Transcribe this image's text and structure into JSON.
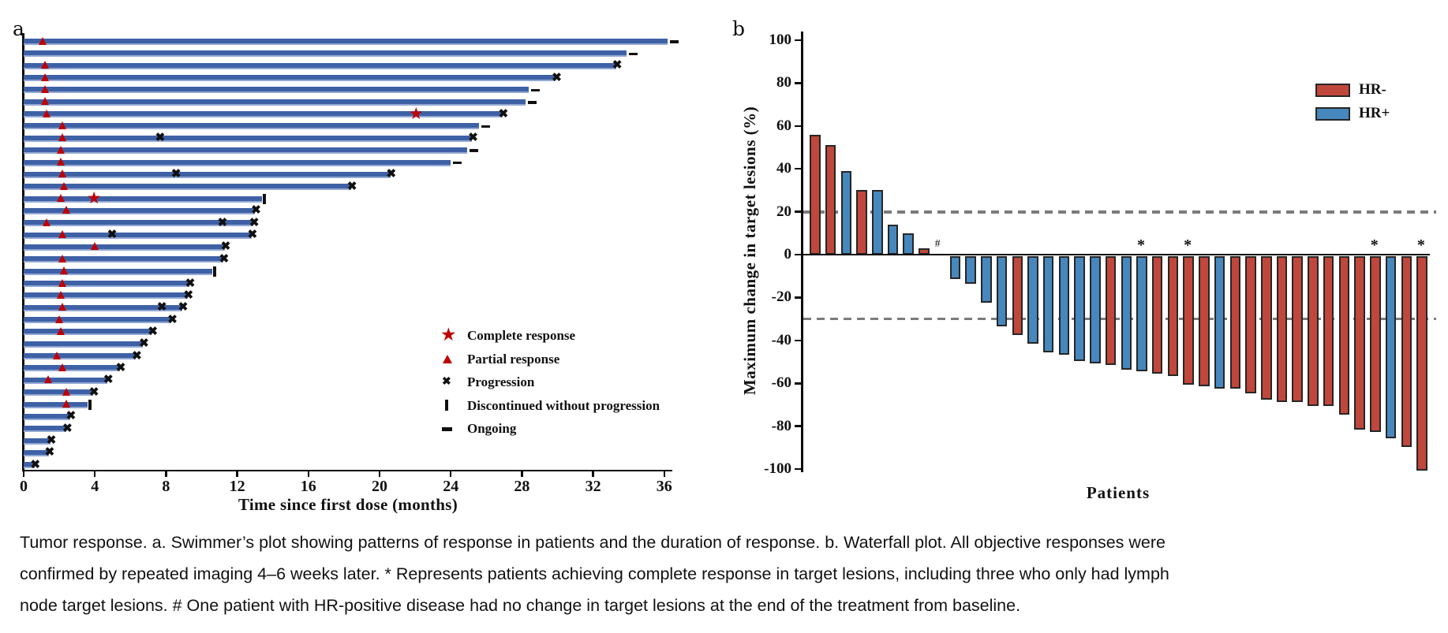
{
  "colors": {
    "swimmer_bar": "#3E61A6",
    "swimmer_bar_edge": "#93A9D4",
    "response_marker_red": "#C00000",
    "black_marker": "#101010",
    "waterfall_hr_neg": "#C0473B",
    "waterfall_hr_pos": "#4687BE",
    "bar_outline": "#262626",
    "dashed_reference": "#7B7B7B"
  },
  "chart_data": [
    {
      "type": "bar",
      "subtype": "swimmer",
      "panel_label": "a",
      "xlabel": "Time since first dose (months)",
      "x_ticks": [
        0,
        4,
        8,
        12,
        16,
        20,
        24,
        28,
        32,
        36
      ],
      "xlim": [
        0,
        36.6
      ],
      "legend": [
        {
          "symbol": "star",
          "label": "Complete response"
        },
        {
          "symbol": "triangle",
          "label": "Partial response"
        },
        {
          "symbol": "x",
          "label": "Progression"
        },
        {
          "symbol": "vbar",
          "label": "Discontinued without progression"
        },
        {
          "symbol": "dash",
          "label": "Ongoing"
        }
      ],
      "patients": [
        {
          "duration_months": 36.2,
          "end": "ongoing",
          "markers": [
            {
              "type": "partial_response",
              "at": 1.1
            }
          ]
        },
        {
          "duration_months": 33.9,
          "end": "ongoing",
          "markers": []
        },
        {
          "duration_months": 33.3,
          "end": "progression",
          "markers": [
            {
              "type": "partial_response",
              "at": 1.2
            }
          ]
        },
        {
          "duration_months": 29.9,
          "end": "progression",
          "markers": [
            {
              "type": "partial_response",
              "at": 1.2
            }
          ]
        },
        {
          "duration_months": 28.4,
          "end": "ongoing",
          "markers": [
            {
              "type": "partial_response",
              "at": 1.2
            }
          ]
        },
        {
          "duration_months": 28.2,
          "end": "ongoing",
          "markers": [
            {
              "type": "partial_response",
              "at": 1.2
            }
          ]
        },
        {
          "duration_months": 26.9,
          "end": "progression",
          "markers": [
            {
              "type": "partial_response",
              "at": 1.3
            },
            {
              "type": "complete_response",
              "at": 22.1
            }
          ]
        },
        {
          "duration_months": 25.6,
          "end": "ongoing",
          "markers": [
            {
              "type": "partial_response",
              "at": 2.2
            }
          ]
        },
        {
          "duration_months": 25.2,
          "end": "progression",
          "markers": [
            {
              "type": "partial_response",
              "at": 2.2
            },
            {
              "type": "progression",
              "at": 7.7
            }
          ]
        },
        {
          "duration_months": 24.9,
          "end": "ongoing",
          "markers": [
            {
              "type": "partial_response",
              "at": 2.1
            }
          ]
        },
        {
          "duration_months": 24.0,
          "end": "ongoing",
          "markers": [
            {
              "type": "partial_response",
              "at": 2.1
            }
          ]
        },
        {
          "duration_months": 20.6,
          "end": "progression",
          "markers": [
            {
              "type": "partial_response",
              "at": 2.2
            },
            {
              "type": "progression",
              "at": 8.6
            }
          ]
        },
        {
          "duration_months": 18.4,
          "end": "progression",
          "markers": [
            {
              "type": "partial_response",
              "at": 2.3
            }
          ]
        },
        {
          "duration_months": 13.4,
          "end": "discontinued",
          "markers": [
            {
              "type": "partial_response",
              "at": 2.1
            },
            {
              "type": "complete_response",
              "at": 4.0
            }
          ]
        },
        {
          "duration_months": 13.0,
          "end": "progression",
          "markers": [
            {
              "type": "partial_response",
              "at": 2.4
            }
          ]
        },
        {
          "duration_months": 12.9,
          "end": "progression",
          "markers": [
            {
              "type": "partial_response",
              "at": 1.3
            },
            {
              "type": "progression",
              "at": 11.2
            }
          ]
        },
        {
          "duration_months": 12.8,
          "end": "progression",
          "markers": [
            {
              "type": "partial_response",
              "at": 2.2
            },
            {
              "type": "progression",
              "at": 5.0
            }
          ]
        },
        {
          "duration_months": 11.3,
          "end": "progression",
          "markers": [
            {
              "type": "partial_response",
              "at": 4.0
            }
          ]
        },
        {
          "duration_months": 11.2,
          "end": "progression",
          "markers": [
            {
              "type": "partial_response",
              "at": 2.2
            }
          ]
        },
        {
          "duration_months": 10.6,
          "end": "discontinued",
          "markers": [
            {
              "type": "partial_response",
              "at": 2.3
            }
          ]
        },
        {
          "duration_months": 9.3,
          "end": "progression",
          "markers": [
            {
              "type": "partial_response",
              "at": 2.2
            }
          ]
        },
        {
          "duration_months": 9.2,
          "end": "progression",
          "markers": [
            {
              "type": "partial_response",
              "at": 2.1
            }
          ]
        },
        {
          "duration_months": 8.9,
          "end": "progression",
          "markers": [
            {
              "type": "partial_response",
              "at": 2.2
            },
            {
              "type": "progression",
              "at": 7.8
            }
          ]
        },
        {
          "duration_months": 8.3,
          "end": "progression",
          "markers": [
            {
              "type": "partial_response",
              "at": 2.0
            }
          ]
        },
        {
          "duration_months": 7.2,
          "end": "progression",
          "markers": [
            {
              "type": "partial_response",
              "at": 2.1
            }
          ]
        },
        {
          "duration_months": 6.7,
          "end": "progression",
          "markers": []
        },
        {
          "duration_months": 6.3,
          "end": "progression",
          "markers": [
            {
              "type": "partial_response",
              "at": 1.9
            }
          ]
        },
        {
          "duration_months": 5.4,
          "end": "progression",
          "markers": [
            {
              "type": "partial_response",
              "at": 2.2
            }
          ]
        },
        {
          "duration_months": 4.7,
          "end": "progression",
          "markers": [
            {
              "type": "partial_response",
              "at": 1.4
            }
          ]
        },
        {
          "duration_months": 3.9,
          "end": "progression",
          "markers": [
            {
              "type": "partial_response",
              "at": 2.4
            }
          ]
        },
        {
          "duration_months": 3.6,
          "end": "discontinued",
          "markers": [
            {
              "type": "partial_response",
              "at": 2.4
            }
          ]
        },
        {
          "duration_months": 2.6,
          "end": "progression",
          "markers": []
        },
        {
          "duration_months": 2.4,
          "end": "progression",
          "markers": []
        },
        {
          "duration_months": 1.5,
          "end": "progression",
          "markers": []
        },
        {
          "duration_months": 1.4,
          "end": "progression",
          "markers": []
        },
        {
          "duration_months": 0.6,
          "end": "progression",
          "markers": []
        }
      ]
    },
    {
      "type": "bar",
      "subtype": "waterfall",
      "panel_label": "b",
      "xlabel": "Patients",
      "ylabel": "Maximum change in target lesions (%)",
      "y_ticks": [
        100,
        80,
        60,
        40,
        20,
        0,
        -20,
        -40,
        -60,
        -80,
        -100
      ],
      "ylim": [
        -100,
        100
      ],
      "reference_lines": [
        20,
        -30
      ],
      "legend": [
        {
          "label": "HR-",
          "group": "HR-",
          "color": "#C0473B"
        },
        {
          "label": "HR+",
          "group": "HR+",
          "color": "#4687BE"
        }
      ],
      "bars": [
        {
          "value": 56,
          "group": "HR-"
        },
        {
          "value": 51,
          "group": "HR-"
        },
        {
          "value": 39,
          "group": "HR+"
        },
        {
          "value": 30,
          "group": "HR-"
        },
        {
          "value": 30,
          "group": "HR+"
        },
        {
          "value": 14,
          "group": "HR+"
        },
        {
          "value": 10,
          "group": "HR+"
        },
        {
          "value": 3,
          "group": "HR-"
        },
        {
          "value": 0,
          "group": "HR+",
          "annotation": "#"
        },
        {
          "value": -11,
          "group": "HR+"
        },
        {
          "value": -13,
          "group": "HR+"
        },
        {
          "value": -22,
          "group": "HR+"
        },
        {
          "value": -33,
          "group": "HR+"
        },
        {
          "value": -37,
          "group": "HR-"
        },
        {
          "value": -41,
          "group": "HR+"
        },
        {
          "value": -45,
          "group": "HR+"
        },
        {
          "value": -46,
          "group": "HR+"
        },
        {
          "value": -49,
          "group": "HR+"
        },
        {
          "value": -50,
          "group": "HR+"
        },
        {
          "value": -51,
          "group": "HR-"
        },
        {
          "value": -53,
          "group": "HR+"
        },
        {
          "value": -54,
          "group": "HR+",
          "annotation": "*"
        },
        {
          "value": -55,
          "group": "HR-"
        },
        {
          "value": -56,
          "group": "HR-"
        },
        {
          "value": -60,
          "group": "HR-",
          "annotation": "*"
        },
        {
          "value": -61,
          "group": "HR-"
        },
        {
          "value": -62,
          "group": "HR+"
        },
        {
          "value": -62,
          "group": "HR-"
        },
        {
          "value": -64,
          "group": "HR-"
        },
        {
          "value": -67,
          "group": "HR-"
        },
        {
          "value": -68,
          "group": "HR-"
        },
        {
          "value": -68,
          "group": "HR-"
        },
        {
          "value": -70,
          "group": "HR-"
        },
        {
          "value": -70,
          "group": "HR-"
        },
        {
          "value": -74,
          "group": "HR-"
        },
        {
          "value": -81,
          "group": "HR-"
        },
        {
          "value": -82,
          "group": "HR-",
          "annotation": "*"
        },
        {
          "value": -85,
          "group": "HR+"
        },
        {
          "value": -89,
          "group": "HR-"
        },
        {
          "value": -100,
          "group": "HR-",
          "annotation": "*"
        }
      ]
    }
  ],
  "caption": {
    "line1": "Tumor response. a. Swimmer’s plot showing patterns of response in patients and the duration of response. b. Waterfall plot. All objective responses were",
    "line2": "confirmed by repeated imaging 4–6 weeks later. * Represents patients achieving complete response in target lesions, including three who only had lymph",
    "line3": "node target lesions. # One patient with HR-positive disease had no change in target lesions at the end of the treatment from baseline."
  }
}
